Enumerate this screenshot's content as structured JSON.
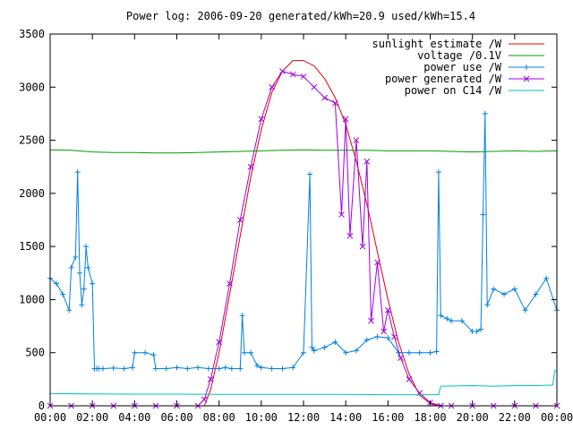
{
  "chart_data": {
    "type": "line",
    "title": "Power log: 2006-09-20 generated/kWh=20.9 used/kWh=15.4",
    "xlabel": "",
    "ylabel": "",
    "x_ticks": [
      "00:00",
      "02:00",
      "04:00",
      "06:00",
      "08:00",
      "10:00",
      "12:00",
      "14:00",
      "16:00",
      "18:00",
      "20:00",
      "22:00",
      "00:00"
    ],
    "xlim": [
      0,
      24
    ],
    "ylim": [
      0,
      3500
    ],
    "y_ticks": [
      0,
      500,
      1000,
      1500,
      2000,
      2500,
      3000,
      3500
    ],
    "grid": false,
    "legend_position": "top-right",
    "series": [
      {
        "name": "sunlight estimate /W",
        "color": "#e00000",
        "style": "line",
        "x": [
          7.3,
          7.6,
          8.0,
          8.5,
          9.0,
          9.5,
          10.0,
          10.5,
          11.0,
          11.5,
          12.0,
          12.5,
          13.0,
          13.5,
          14.0,
          14.5,
          15.0,
          15.5,
          16.0,
          16.5,
          17.0,
          17.5,
          18.0,
          18.4
        ],
        "y": [
          0,
          150,
          500,
          1050,
          1600,
          2150,
          2600,
          2950,
          3150,
          3250,
          3250,
          3200,
          3080,
          2900,
          2650,
          2300,
          1900,
          1450,
          1000,
          600,
          300,
          100,
          20,
          0
        ]
      },
      {
        "name": "voltage /0.1V",
        "color": "#00a000",
        "style": "line",
        "x": [
          0.0,
          1.0,
          2.0,
          3.0,
          4.0,
          5.0,
          6.0,
          7.0,
          8.0,
          9.0,
          10.0,
          11.0,
          12.0,
          13.0,
          14.0,
          15.0,
          16.0,
          17.0,
          18.0,
          19.0,
          20.0,
          21.0,
          22.0,
          23.0,
          24.0
        ],
        "y": [
          2410,
          2405,
          2390,
          2385,
          2385,
          2380,
          2380,
          2385,
          2390,
          2395,
          2400,
          2405,
          2410,
          2405,
          2405,
          2405,
          2400,
          2400,
          2400,
          2395,
          2390,
          2395,
          2400,
          2395,
          2400
        ]
      },
      {
        "name": "power use /W",
        "color": "#0080e0",
        "style": "linespoints",
        "marker": "plus",
        "x": [
          0.0,
          0.3,
          0.6,
          0.9,
          1.0,
          1.2,
          1.3,
          1.4,
          1.5,
          1.6,
          1.7,
          1.8,
          2.0,
          2.1,
          2.2,
          2.3,
          2.5,
          3.0,
          3.5,
          3.9,
          4.0,
          4.5,
          4.9,
          5.0,
          5.5,
          6.0,
          6.5,
          7.0,
          7.5,
          8.0,
          8.3,
          8.6,
          9.0,
          9.1,
          9.2,
          9.5,
          9.8,
          10.0,
          10.5,
          11.0,
          11.5,
          12.0,
          12.3,
          12.4,
          12.5,
          13.0,
          13.5,
          14.0,
          14.5,
          15.0,
          15.5,
          16.0,
          16.5,
          17.0,
          17.5,
          18.0,
          18.3,
          18.4,
          18.5,
          18.8,
          19.0,
          19.5,
          20.0,
          20.2,
          20.4,
          20.5,
          20.6,
          20.7,
          21.0,
          21.5,
          22.0,
          22.5,
          23.0,
          23.5,
          24.0
        ],
        "y": [
          1200,
          1150,
          1050,
          900,
          1300,
          1400,
          2200,
          1250,
          950,
          1100,
          1500,
          1300,
          1150,
          350,
          350,
          350,
          350,
          355,
          350,
          360,
          500,
          500,
          480,
          350,
          350,
          360,
          350,
          360,
          350,
          350,
          360,
          350,
          350,
          850,
          500,
          500,
          380,
          360,
          350,
          350,
          360,
          500,
          2180,
          550,
          520,
          550,
          600,
          500,
          520,
          620,
          650,
          640,
          500,
          500,
          500,
          500,
          510,
          2200,
          850,
          820,
          800,
          800,
          700,
          700,
          720,
          1800,
          2750,
          950,
          1100,
          1050,
          1100,
          900,
          1050,
          1200,
          900
        ]
      },
      {
        "name": "power generated /W",
        "color": "#a000e0",
        "style": "linespoints",
        "marker": "cross",
        "x": [
          0.0,
          1.0,
          2.0,
          3.0,
          4.0,
          5.0,
          6.0,
          7.0,
          7.3,
          7.6,
          8.0,
          8.5,
          9.0,
          9.5,
          10.0,
          10.5,
          11.0,
          11.5,
          12.0,
          12.5,
          13.0,
          13.5,
          13.8,
          14.0,
          14.2,
          14.5,
          14.8,
          15.0,
          15.2,
          15.5,
          15.8,
          16.0,
          16.3,
          16.6,
          17.0,
          17.5,
          18.0,
          18.5,
          19.0,
          20.0,
          21.0,
          22.0,
          23.0,
          24.0
        ],
        "y": [
          0,
          0,
          0,
          0,
          0,
          0,
          0,
          0,
          60,
          250,
          600,
          1150,
          1750,
          2250,
          2700,
          3000,
          3150,
          3120,
          3100,
          3000,
          2900,
          2850,
          1800,
          2700,
          1600,
          2500,
          1500,
          2300,
          800,
          1350,
          700,
          900,
          650,
          450,
          250,
          120,
          30,
          0,
          0,
          0,
          0,
          0,
          0,
          0
        ]
      },
      {
        "name": "power on C14 /W",
        "color": "#00c0c0",
        "style": "line",
        "x": [
          0.0,
          2.0,
          4.0,
          6.0,
          8.0,
          10.0,
          12.0,
          14.0,
          16.0,
          18.0,
          18.4,
          18.5,
          20.0,
          21.0,
          22.0,
          23.0,
          23.8,
          23.9,
          24.0
        ],
        "y": [
          115,
          112,
          110,
          110,
          108,
          108,
          108,
          108,
          105,
          105,
          105,
          185,
          190,
          185,
          190,
          190,
          195,
          330,
          330
        ]
      }
    ]
  }
}
